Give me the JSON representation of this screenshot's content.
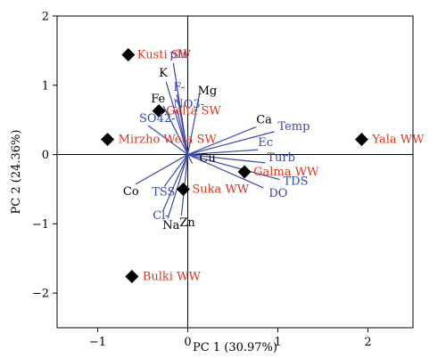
{
  "chart_data": {
    "type": "scatter",
    "subtype": "pca-biplot",
    "xlabel": "PC 1 (30.97%)",
    "ylabel": "PC 2 (24.36%)",
    "xlim": [
      -1.45,
      2.5
    ],
    "ylim": [
      -2.5,
      2
    ],
    "xticks": [
      -1,
      0,
      1,
      2
    ],
    "xtick_labels": [
      "−1",
      "0",
      "1",
      "2"
    ],
    "yticks": [
      -2,
      -1,
      0,
      1,
      2
    ],
    "ytick_labels": [
      "−2",
      "−1",
      "0",
      "1",
      "2"
    ],
    "grid": false,
    "zero_lines": true,
    "loading_color": "#3a4aa6",
    "site_color": "#e0351b",
    "marker_color": "#000000",
    "loadings": [
      {
        "name": "pH",
        "x": -0.16,
        "y": 1.32,
        "color": "#3a4aa6"
      },
      {
        "name": "K",
        "x": -0.24,
        "y": 1.05,
        "color": "#000000"
      },
      {
        "name": "F-",
        "x": -0.12,
        "y": 0.87,
        "color": "#3a4aa6"
      },
      {
        "name": "Fe",
        "x": -0.27,
        "y": 0.7,
        "color": "#000000"
      },
      {
        "name": "NO3-",
        "x": -0.12,
        "y": 0.65,
        "color": "#3a4aa6"
      },
      {
        "name": "Mg",
        "x": 0.13,
        "y": 0.87,
        "color": "#000000"
      },
      {
        "name": "SO42-",
        "x": -0.44,
        "y": 0.42,
        "color": "#3a4aa6"
      },
      {
        "name": "Ca",
        "x": 0.76,
        "y": 0.4,
        "color": "#000000"
      },
      {
        "name": "Temp",
        "x": 0.96,
        "y": 0.33,
        "color": "#3a4aa6"
      },
      {
        "name": "Ec",
        "x": 0.78,
        "y": 0.07,
        "color": "#3a4aa6"
      },
      {
        "name": "Turb",
        "x": 0.86,
        "y": -0.12,
        "color": "#3a4aa6"
      },
      {
        "name": "TDS",
        "x": 1.02,
        "y": -0.36,
        "color": "#3a4aa6"
      },
      {
        "name": "DO",
        "x": 0.84,
        "y": -0.48,
        "color": "#3a4aa6"
      },
      {
        "name": "Cu",
        "x": 0.05,
        "y": -0.13,
        "color": "#000000"
      },
      {
        "name": "TSS",
        "x": -0.26,
        "y": -0.46,
        "color": "#3a4aa6"
      },
      {
        "name": "Co",
        "x": -0.58,
        "y": -0.43,
        "color": "#000000"
      },
      {
        "name": "Cl-",
        "x": -0.27,
        "y": -0.8,
        "color": "#3a4aa6"
      },
      {
        "name": "Na",
        "x": -0.22,
        "y": -0.92,
        "color": "#000000"
      },
      {
        "name": "Zn",
        "x": -0.07,
        "y": -0.88,
        "color": "#000000"
      }
    ],
    "sites": [
      {
        "name": "Kusti SW",
        "x": -0.66,
        "y": 1.44
      },
      {
        "name": "Gelta SW",
        "x": -0.32,
        "y": 0.63
      },
      {
        "name": "Mirzho Weta SW",
        "x": -0.89,
        "y": 0.22
      },
      {
        "name": "Yala WW",
        "x": 1.93,
        "y": 0.22
      },
      {
        "name": "Galma WW",
        "x": 0.63,
        "y": -0.25
      },
      {
        "name": "Suka WW",
        "x": -0.05,
        "y": -0.5
      },
      {
        "name": "Bulki WW",
        "x": -0.62,
        "y": -1.76
      }
    ]
  }
}
